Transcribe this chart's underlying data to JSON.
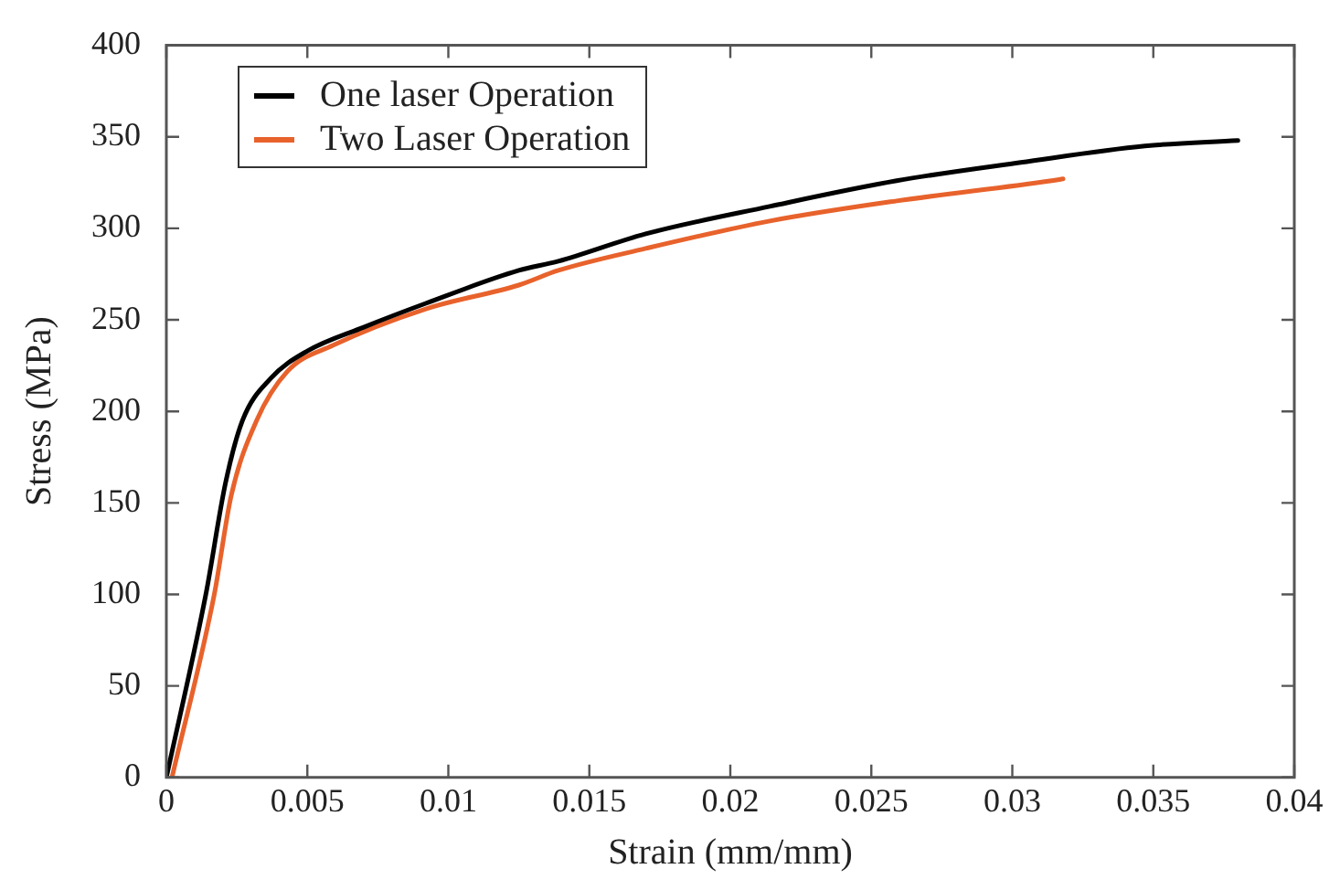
{
  "chart_data": {
    "type": "line",
    "xlabel": "Strain (mm/mm)",
    "ylabel": "Stress (MPa)",
    "xlim": [
      0,
      0.04
    ],
    "ylim": [
      0,
      400
    ],
    "xticks": [
      0,
      0.005,
      0.01,
      0.015,
      0.02,
      0.025,
      0.03,
      0.035,
      0.04
    ],
    "yticks": [
      0,
      50,
      100,
      150,
      200,
      250,
      300,
      350,
      400
    ],
    "grid": false,
    "legend": "top left",
    "marker": "none",
    "line_style": "solid",
    "series": [
      {
        "name": "One laser Operation",
        "color": "#000000",
        "x": [
          0,
          0.0014,
          0.0021,
          0.0027,
          0.0037,
          0.005,
          0.007,
          0.0092,
          0.0125,
          0.0139,
          0.017,
          0.0214,
          0.0259,
          0.0303,
          0.0347,
          0.038
        ],
        "values": [
          0,
          100,
          161,
          195,
          218,
          233,
          246,
          259,
          277,
          282,
          297,
          312,
          326,
          336,
          345,
          348
        ]
      },
      {
        "name": "Two Laser Operation",
        "color": "#e8622c",
        "x": [
          0.0002,
          0.0017,
          0.0023,
          0.0032,
          0.0043,
          0.0059,
          0.0092,
          0.0125,
          0.0139,
          0.017,
          0.0214,
          0.0259,
          0.0314,
          0.0318
        ],
        "values": [
          0,
          100,
          154,
          195,
          222,
          236,
          256,
          269,
          277,
          289,
          304,
          315,
          326,
          327
        ]
      }
    ]
  }
}
